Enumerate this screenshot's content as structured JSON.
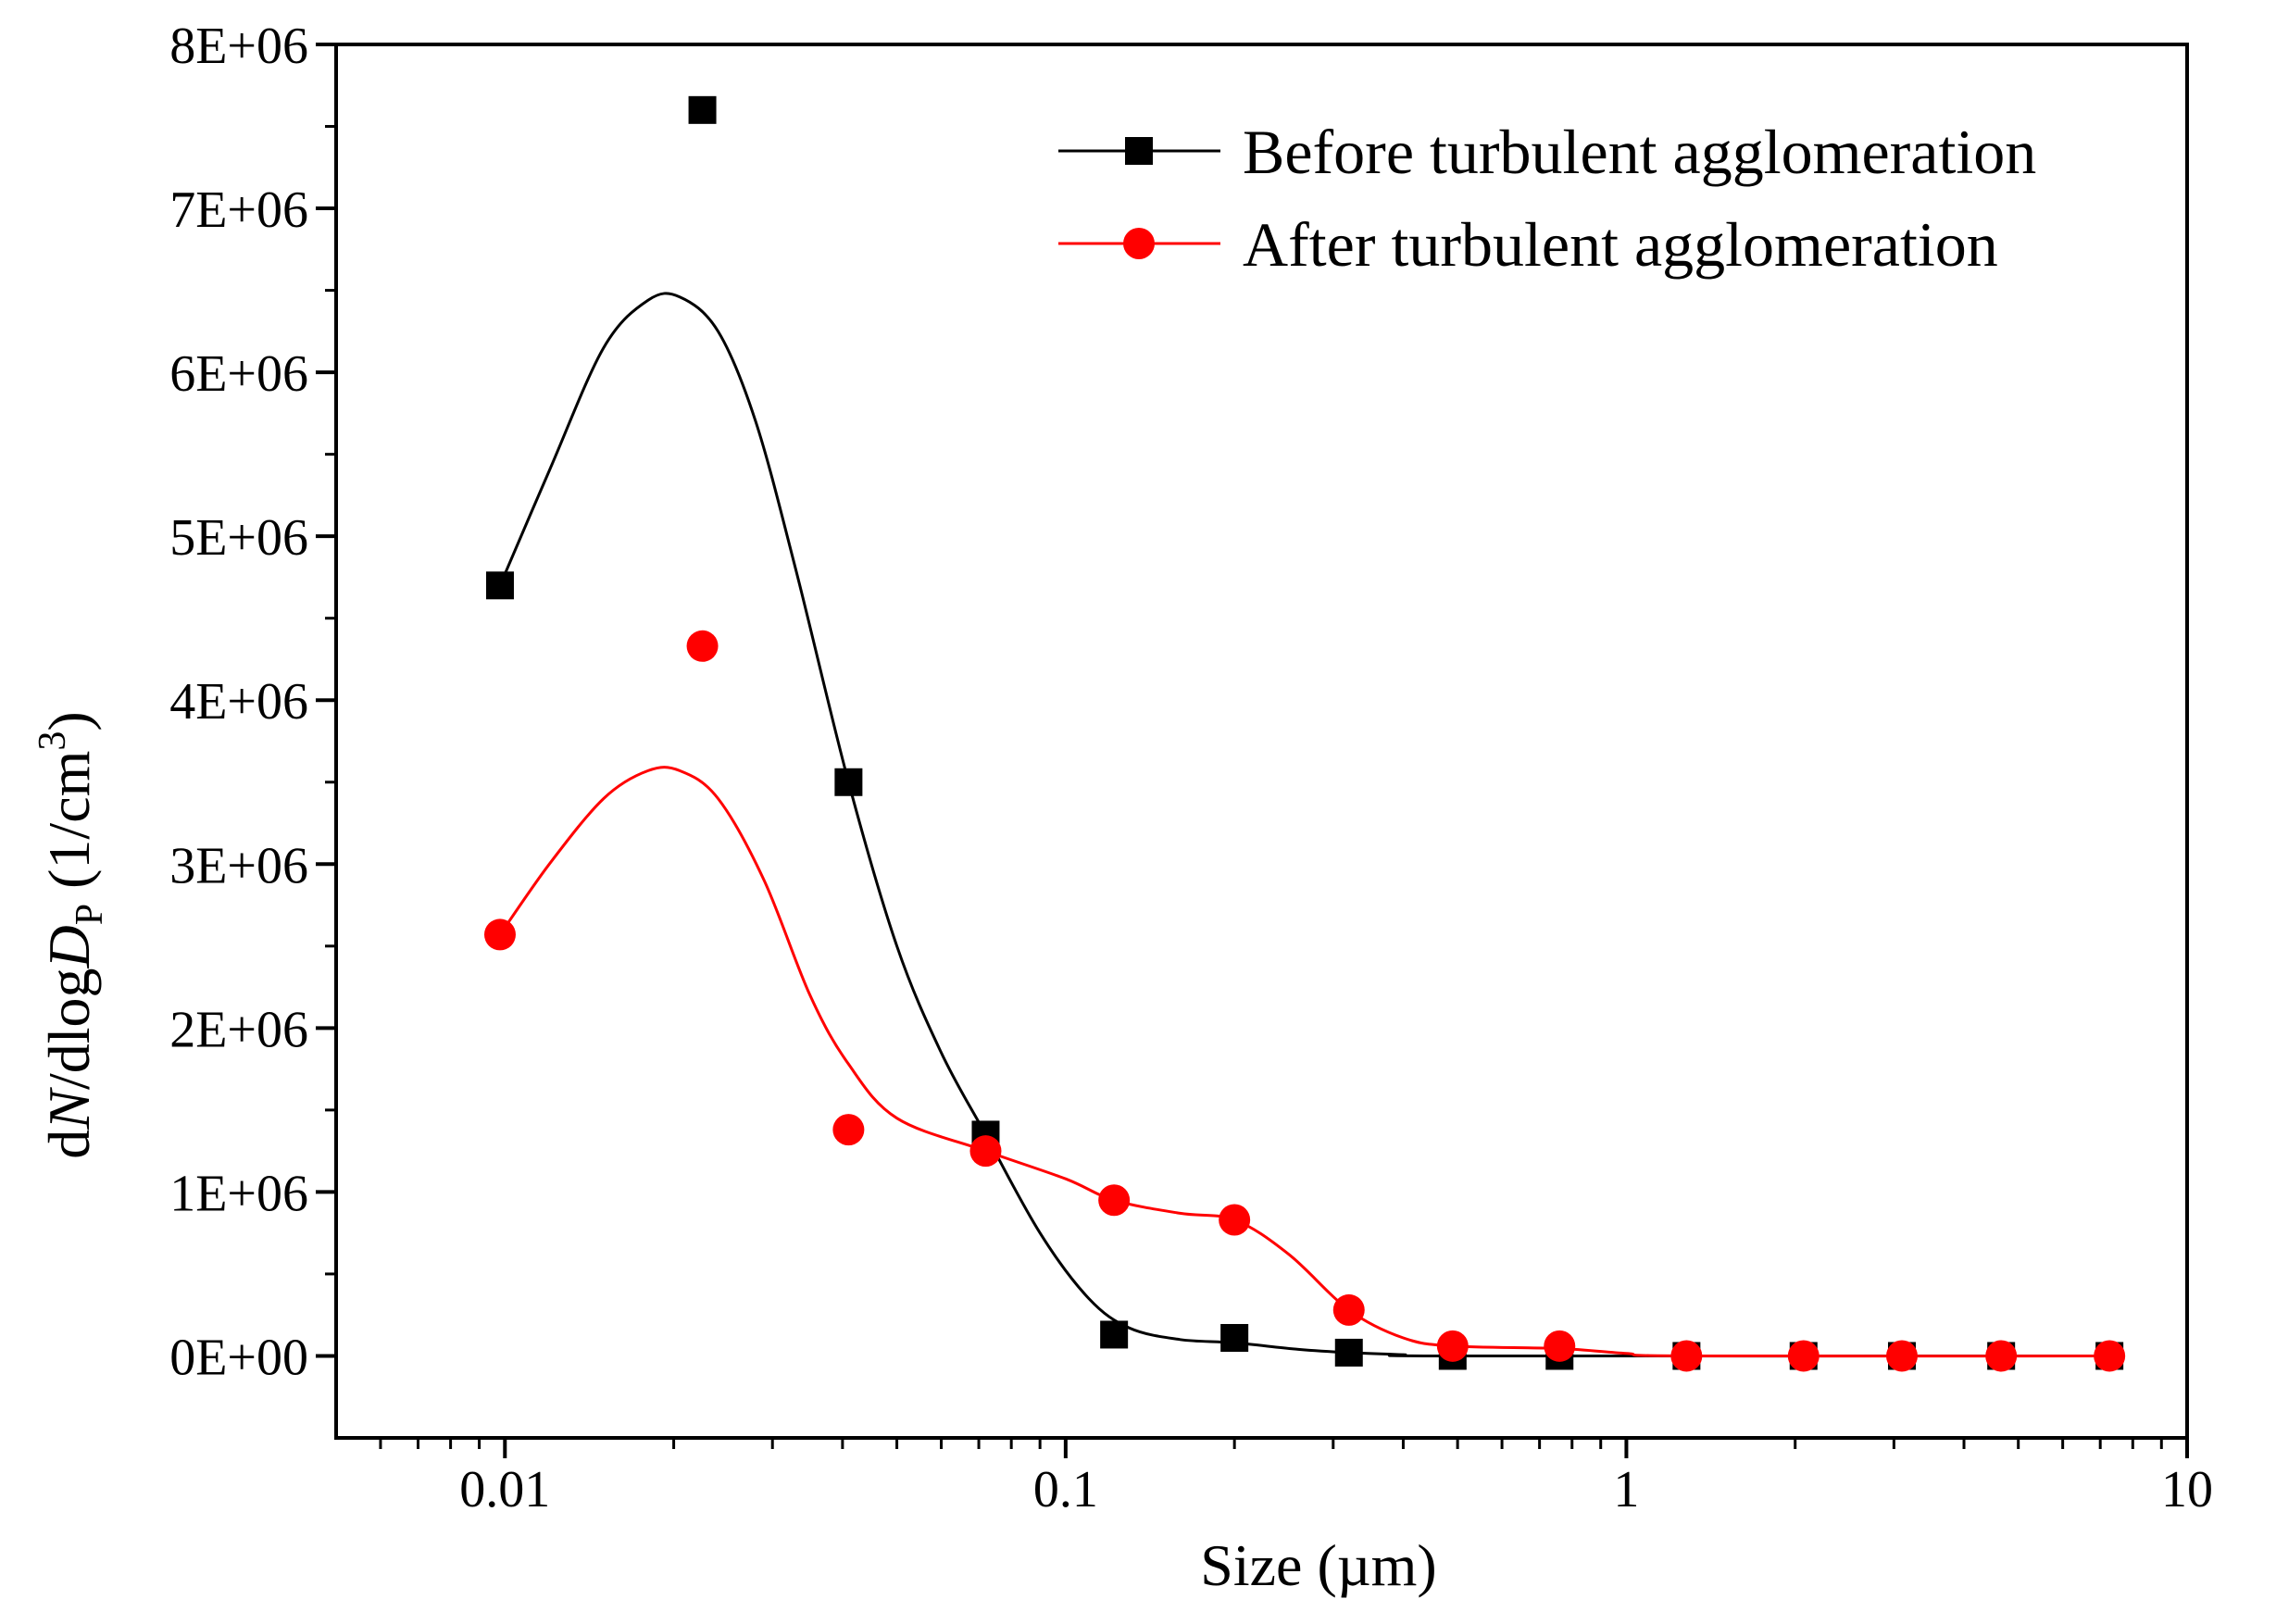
{
  "chart_data": {
    "type": "scatter",
    "title": "",
    "xlabel": "Size (µm)",
    "ylabel": {
      "prefix": "d",
      "italic_n": "N",
      "middle": "/dlog",
      "italic_d": "D",
      "subscript": "P",
      "unit_open": " (1/cm",
      "superscript": "3",
      "unit_close": ")"
    },
    "x_scale": "log",
    "xlim": [
      0.005,
      10
    ],
    "ylim": [
      -500000,
      8000000
    ],
    "x_ticks": [
      {
        "value": 0.01,
        "label": "0.01"
      },
      {
        "value": 0.1,
        "label": "0.1"
      },
      {
        "value": 1,
        "label": "1"
      },
      {
        "value": 10,
        "label": "10"
      }
    ],
    "y_ticks": [
      {
        "value": 0,
        "label": "0E+00"
      },
      {
        "value": 1000000,
        "label": "1E+06"
      },
      {
        "value": 2000000,
        "label": "2E+06"
      },
      {
        "value": 3000000,
        "label": "3E+06"
      },
      {
        "value": 4000000,
        "label": "4E+06"
      },
      {
        "value": 5000000,
        "label": "5E+06"
      },
      {
        "value": 6000000,
        "label": "6E+06"
      },
      {
        "value": 7000000,
        "label": "7E+06"
      },
      {
        "value": 8000000,
        "label": "8E+06"
      }
    ],
    "grid": false,
    "legend_position": "top-right",
    "series": [
      {
        "name": "Before turbulent agglomeration",
        "color": "#000000",
        "marker": "square",
        "points": [
          {
            "x": 0.0098,
            "y": 4700000
          },
          {
            "x": 0.0225,
            "y": 7600000
          },
          {
            "x": 0.041,
            "y": 3500000
          },
          {
            "x": 0.072,
            "y": 1350000
          },
          {
            "x": 0.122,
            "y": 130000
          },
          {
            "x": 0.2,
            "y": 110000
          },
          {
            "x": 0.32,
            "y": 20000
          },
          {
            "x": 0.49,
            "y": 0
          },
          {
            "x": 0.76,
            "y": 0
          },
          {
            "x": 1.28,
            "y": 0
          },
          {
            "x": 2.07,
            "y": 0
          },
          {
            "x": 3.1,
            "y": 0
          },
          {
            "x": 4.66,
            "y": 0
          },
          {
            "x": 7.27,
            "y": 0
          }
        ],
        "curve": [
          {
            "x": 0.0098,
            "y": 4700000
          },
          {
            "x": 0.012,
            "y": 5400000
          },
          {
            "x": 0.015,
            "y": 6150000
          },
          {
            "x": 0.018,
            "y": 6440000
          },
          {
            "x": 0.0205,
            "y": 6460000
          },
          {
            "x": 0.024,
            "y": 6250000
          },
          {
            "x": 0.028,
            "y": 5700000
          },
          {
            "x": 0.033,
            "y": 4800000
          },
          {
            "x": 0.041,
            "y": 3500000
          },
          {
            "x": 0.05,
            "y": 2500000
          },
          {
            "x": 0.06,
            "y": 1850000
          },
          {
            "x": 0.072,
            "y": 1350000
          },
          {
            "x": 0.09,
            "y": 750000
          },
          {
            "x": 0.11,
            "y": 350000
          },
          {
            "x": 0.13,
            "y": 170000
          },
          {
            "x": 0.16,
            "y": 100000
          },
          {
            "x": 0.2,
            "y": 80000
          },
          {
            "x": 0.26,
            "y": 40000
          },
          {
            "x": 0.32,
            "y": 20000
          },
          {
            "x": 0.4,
            "y": 8000
          },
          {
            "x": 0.49,
            "y": 0
          },
          {
            "x": 7.27,
            "y": 0
          }
        ]
      },
      {
        "name": "After turbulent agglomeration",
        "color": "#ff0000",
        "marker": "circle",
        "points": [
          {
            "x": 0.0098,
            "y": 2570000
          },
          {
            "x": 0.0225,
            "y": 4330000
          },
          {
            "x": 0.041,
            "y": 1380000
          },
          {
            "x": 0.072,
            "y": 1250000
          },
          {
            "x": 0.122,
            "y": 950000
          },
          {
            "x": 0.2,
            "y": 830000
          },
          {
            "x": 0.32,
            "y": 280000
          },
          {
            "x": 0.49,
            "y": 60000
          },
          {
            "x": 0.76,
            "y": 60000
          },
          {
            "x": 1.28,
            "y": 0
          },
          {
            "x": 2.07,
            "y": 0
          },
          {
            "x": 3.1,
            "y": 0
          },
          {
            "x": 4.66,
            "y": 0
          },
          {
            "x": 7.27,
            "y": 0
          }
        ],
        "curve": [
          {
            "x": 0.0098,
            "y": 2570000
          },
          {
            "x": 0.012,
            "y": 3000000
          },
          {
            "x": 0.015,
            "y": 3400000
          },
          {
            "x": 0.018,
            "y": 3570000
          },
          {
            "x": 0.0205,
            "y": 3570000
          },
          {
            "x": 0.024,
            "y": 3400000
          },
          {
            "x": 0.029,
            "y": 2900000
          },
          {
            "x": 0.035,
            "y": 2200000
          },
          {
            "x": 0.041,
            "y": 1780000
          },
          {
            "x": 0.05,
            "y": 1450000
          },
          {
            "x": 0.072,
            "y": 1250000
          },
          {
            "x": 0.1,
            "y": 1080000
          },
          {
            "x": 0.122,
            "y": 950000
          },
          {
            "x": 0.16,
            "y": 870000
          },
          {
            "x": 0.2,
            "y": 830000
          },
          {
            "x": 0.25,
            "y": 620000
          },
          {
            "x": 0.32,
            "y": 280000
          },
          {
            "x": 0.4,
            "y": 110000
          },
          {
            "x": 0.49,
            "y": 60000
          },
          {
            "x": 0.76,
            "y": 45000
          },
          {
            "x": 1.0,
            "y": 15000
          },
          {
            "x": 1.28,
            "y": 0
          },
          {
            "x": 7.27,
            "y": 0
          }
        ]
      }
    ]
  }
}
